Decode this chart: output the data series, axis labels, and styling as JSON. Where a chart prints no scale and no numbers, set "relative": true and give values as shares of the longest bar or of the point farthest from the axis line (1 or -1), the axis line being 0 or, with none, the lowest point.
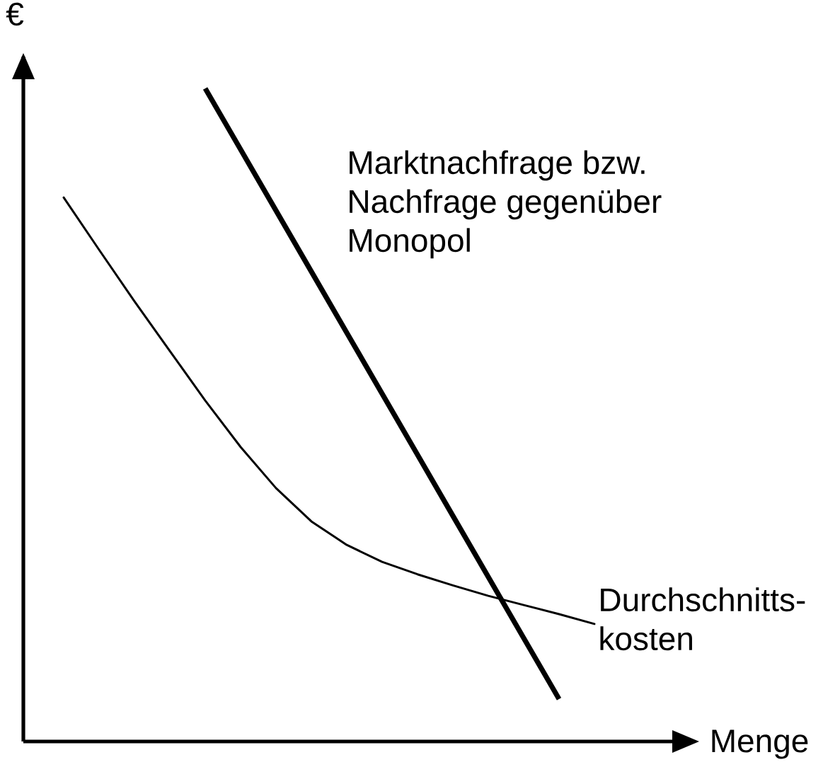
{
  "chart_data": {
    "type": "line",
    "relative": true,
    "xlabel": "Menge",
    "ylabel": "€",
    "categories": [
      null,
      null,
      null,
      null,
      null,
      null,
      null,
      null,
      null,
      null,
      null,
      null,
      null,
      null,
      null,
      null
    ],
    "series": [
      {
        "name": "Marktnachfrage bzw. Nachfrage gegenüber Monopol",
        "color": "#000000",
        "values": [
          null,
          null,
          null,
          null,
          1,
          0.9065,
          0.813,
          0.7195,
          0.626,
          0.5325,
          0.439,
          0.3455,
          0.252,
          0.1585,
          0.065,
          null
        ]
      },
      {
        "name": "Durchschnitts-kosten",
        "color": "#000000",
        "values": [
          0.833,
          0.753,
          0.674,
          0.598,
          0.522,
          0.451,
          0.388,
          0.337,
          0.301,
          0.275,
          0.256,
          0.239,
          0.223,
          0.209,
          0.195,
          0.18
        ]
      }
    ]
  }
}
